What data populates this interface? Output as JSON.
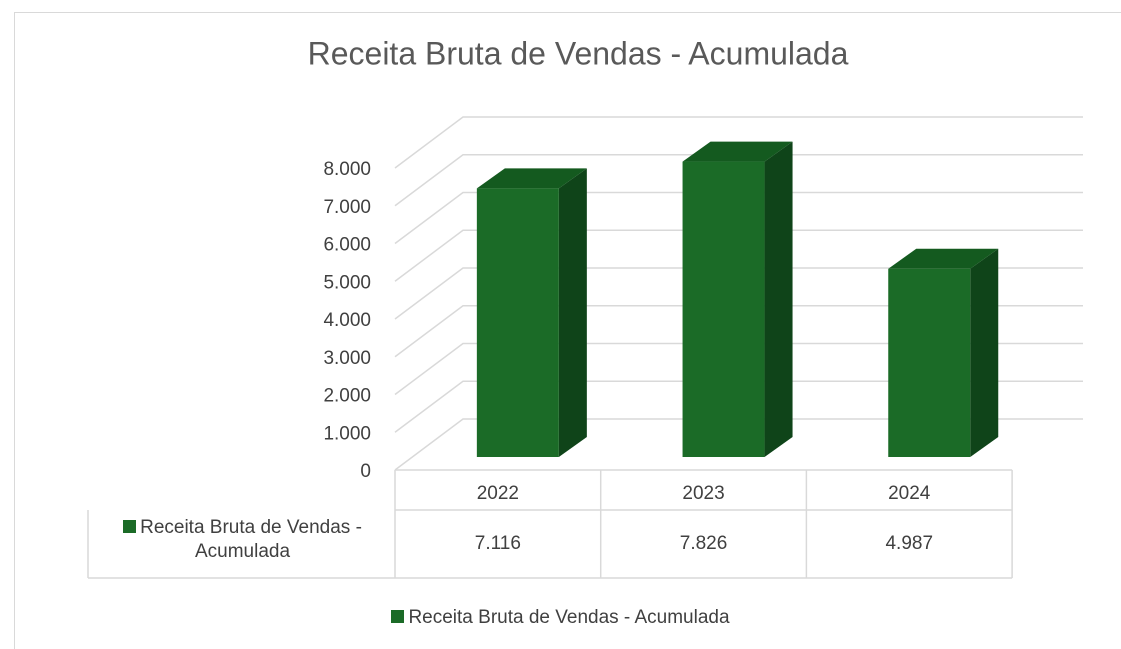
{
  "chart_data": {
    "type": "bar",
    "title": "Receita Bruta de Vendas - Acumulada",
    "categories": [
      "2022",
      "2023",
      "2024"
    ],
    "series": [
      {
        "name": "Receita Bruta de Vendas - Acumulada",
        "color": "#1b6b27",
        "values": [
          7116,
          7826,
          4987
        ],
        "value_labels": [
          "7.116",
          "7.826",
          "4.987"
        ]
      }
    ],
    "ylim": [
      0,
      8000
    ],
    "yticks": [
      0,
      {
        "value": 1000,
        "label": "1.000"
      },
      {
        "value": 2000,
        "label": "2.000"
      },
      {
        "value": 3000,
        "label": "3.000"
      },
      {
        "value": 4000,
        "label": "4.000"
      },
      {
        "value": 5000,
        "label": "5.000"
      },
      {
        "value": 6000,
        "label": "6.000"
      },
      {
        "value": 7000,
        "label": "7.000"
      },
      {
        "value": 8000,
        "label": "8.000"
      }
    ],
    "grid": true,
    "legend": "bottom"
  }
}
